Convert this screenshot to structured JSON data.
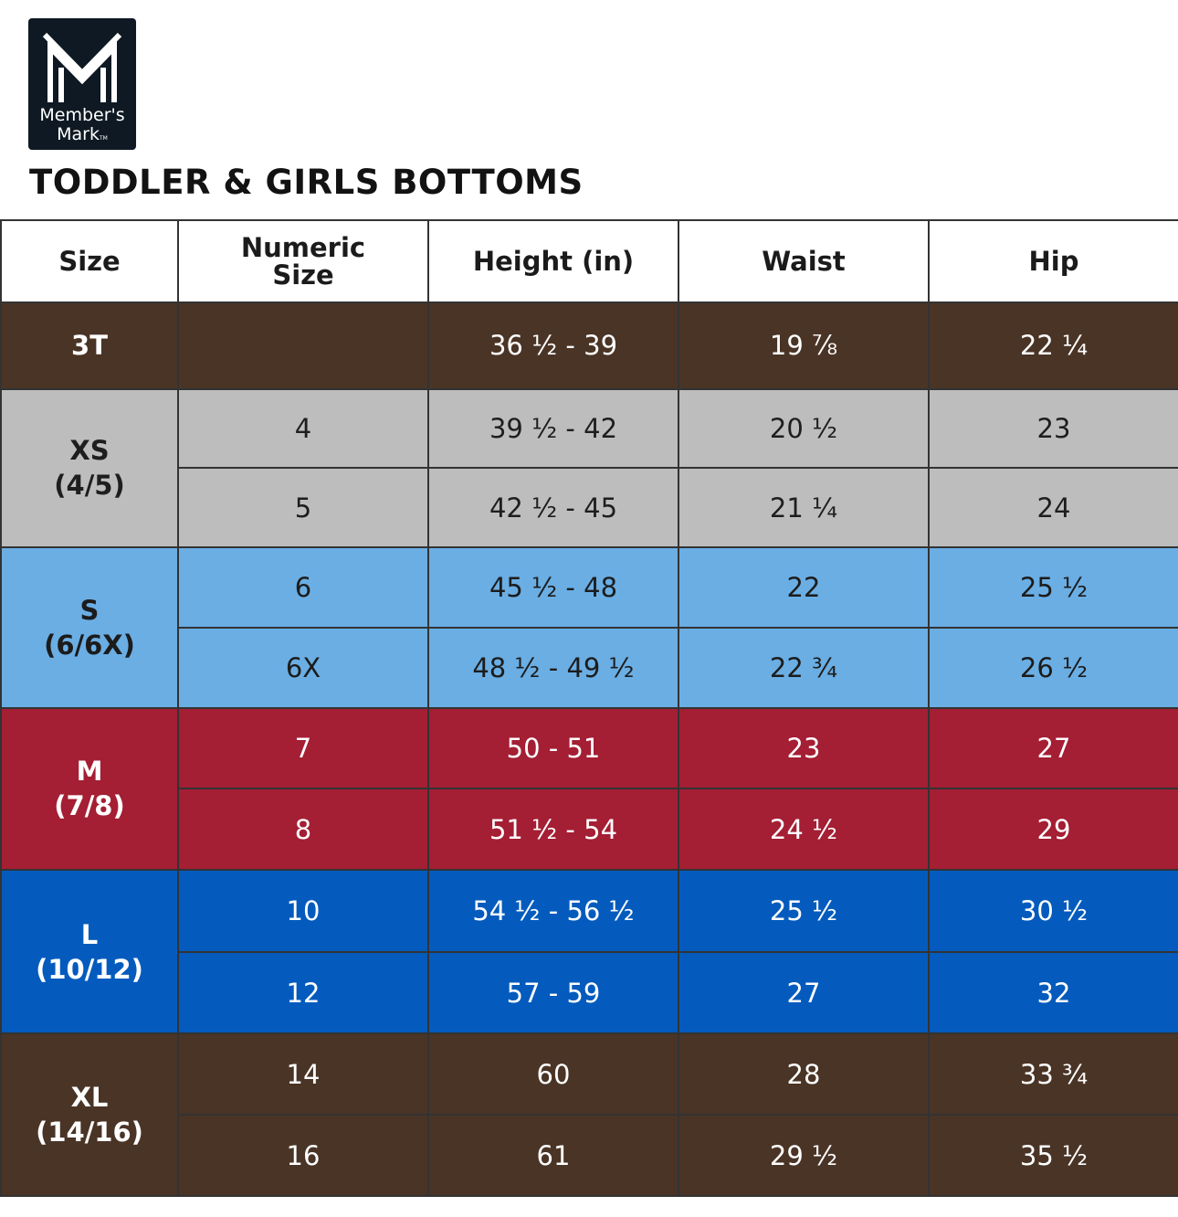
{
  "logo": {
    "line1": "Member's",
    "line2": "Mark",
    "tm": "TM"
  },
  "title": "TODDLER & GIRLS BOTTOMS",
  "headers": [
    "Size",
    "Numeric Size",
    "Height (in)",
    "Waist",
    "Hip"
  ],
  "rows": [
    {
      "size": "3T",
      "size_sub": "",
      "numeric": "",
      "height": "36 ½ - 39",
      "waist": "19 ⅞",
      "hip": "22 ¼"
    },
    {
      "size": "XS",
      "size_sub": "(4/5)",
      "numeric": "4",
      "height": "39 ½ - 42",
      "waist": "20 ½",
      "hip": "23"
    },
    {
      "numeric": "5",
      "height": "42 ½ - 45",
      "waist": "21 ¼",
      "hip": "24"
    },
    {
      "size": "S",
      "size_sub": "(6/6X)",
      "numeric": "6",
      "height": "45 ½ - 48",
      "waist": "22",
      "hip": "25 ½"
    },
    {
      "numeric": "6X",
      "height": "48 ½ - 49 ½",
      "waist": "22 ¾",
      "hip": "26 ½"
    },
    {
      "size": "M",
      "size_sub": "(7/8)",
      "numeric": "7",
      "height": "50 - 51",
      "waist": "23",
      "hip": "27"
    },
    {
      "numeric": "8",
      "height": "51 ½ - 54",
      "waist": "24 ½",
      "hip": "29"
    },
    {
      "size": "L",
      "size_sub": "(10/12)",
      "numeric": "10",
      "height": "54 ½ - 56 ½",
      "waist": "25 ½",
      "hip": "30 ½"
    },
    {
      "numeric": "12",
      "height": "57 - 59",
      "waist": "27",
      "hip": "32"
    },
    {
      "size": "XL",
      "size_sub": "(14/16)",
      "numeric": "14",
      "height": "60",
      "waist": "28",
      "hip": "33 ¾"
    },
    {
      "numeric": "16",
      "height": "61",
      "waist": "29 ½",
      "hip": "35 ½"
    }
  ],
  "colors": {
    "brown": "#4a3426",
    "gray": "#bdbdbd",
    "light_blue": "#6aaee4",
    "red": "#a41e34",
    "blue": "#045bbd"
  }
}
